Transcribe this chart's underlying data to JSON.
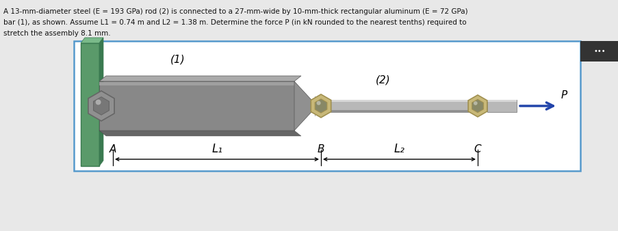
{
  "bg_color": "#e8e8e8",
  "box_bg": "#ffffff",
  "box_edge": "#5599cc",
  "wall_green": "#5a9a6a",
  "wall_dark": "#3a7a50",
  "bar1_main": "#888888",
  "bar1_top": "#aaaaaa",
  "bar1_bottom": "#666666",
  "bar1_side": "#777777",
  "rod2_main": "#b8b8b8",
  "rod2_top": "#d8d8d8",
  "rod2_bottom": "#909090",
  "nut_tan": "#c8b878",
  "nut_tan_dark": "#a09050",
  "nut_gray": "#909090",
  "nut_gray_dark": "#666666",
  "hex_highlight": "#cccccc",
  "arrow_blue": "#2244aa",
  "text_color": "#111111",
  "dots_bg": "#333333",
  "line1": "A 13-mm-diameter steel (E = 193 GPa) rod (2) is connected to a 27-mm-wide by 10-mm-thick rectangular aluminum (E = 72 GPa)",
  "line2": "bar (1), as shown. Assume L1 = 0.74 m and L2 = 1.38 m. Determine the force P (in kN rounded to the nearest tenths) required to",
  "line3": "stretch the assembly 8.1 mm.",
  "label_1": "(1)",
  "label_2": "(2)",
  "label_P": "P",
  "label_A": "A",
  "label_B": "B",
  "label_C": "C",
  "label_L1": "L₁",
  "label_L2": "L₂"
}
